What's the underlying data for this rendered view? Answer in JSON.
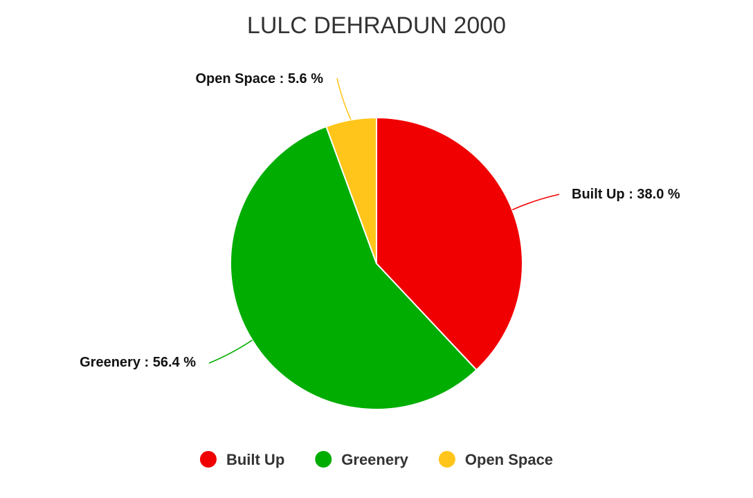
{
  "chart_data": {
    "type": "pie",
    "title": "LULC DEHRADUN 2000",
    "legend_position": "bottom",
    "slices": [
      {
        "name": "Built Up",
        "value": 38.0,
        "label": "Built Up : 38.0 %",
        "color": "#f00000"
      },
      {
        "name": "Greenery",
        "value": 56.4,
        "label": "Greenery : 56.4 %",
        "color": "#00ad00"
      },
      {
        "name": "Open Space",
        "value": 5.6,
        "label": "Open Space : 5.6 %",
        "color": "#ffc51a"
      }
    ]
  }
}
